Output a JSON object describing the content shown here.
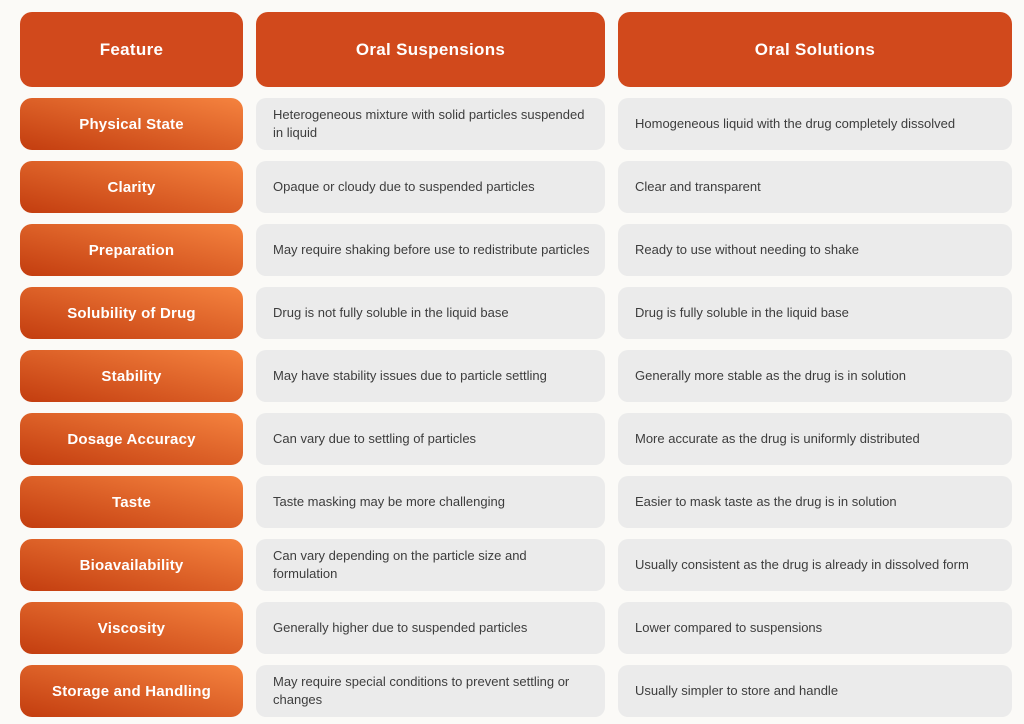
{
  "colors": {
    "background": "#fbfaf7",
    "header_bg": "#d1491c",
    "feature_gradient_start": "#c33d0f",
    "feature_gradient_end": "#f5833f",
    "cell_bg": "#ebebeb",
    "cell_text": "#3d3d3d",
    "header_text": "#ffffff"
  },
  "chart_data": {
    "type": "table",
    "title": "",
    "columns": [
      "Feature",
      "Oral Suspensions",
      "Oral Solutions"
    ],
    "rows": [
      [
        "Physical State",
        "Heterogeneous mixture with solid particles suspended in liquid",
        "Homogeneous liquid with the drug completely dissolved"
      ],
      [
        "Clarity",
        "Opaque or cloudy due to suspended particles",
        "Clear and transparent"
      ],
      [
        "Preparation",
        "May require shaking before use to redistribute particles",
        "Ready to use without needing to shake"
      ],
      [
        "Solubility of Drug",
        "Drug is not fully soluble in the liquid base",
        "Drug is fully soluble in the liquid base"
      ],
      [
        "Stability",
        "May have stability issues due to particle settling",
        "Generally more stable as the drug is in solution"
      ],
      [
        "Dosage Accuracy",
        "Can vary due to settling of particles",
        "More accurate as the drug is uniformly distributed"
      ],
      [
        "Taste",
        "Taste masking may be more challenging",
        "Easier to mask taste as the drug is in solution"
      ],
      [
        "Bioavailability",
        "Can vary depending on the particle size and formulation",
        "Usually consistent as the drug is already in dissolved form"
      ],
      [
        "Viscosity",
        "Generally higher due to suspended particles",
        "Lower compared to suspensions"
      ],
      [
        "Storage and Handling",
        "May require special conditions to prevent settling or changes",
        "Usually simpler to store and handle"
      ]
    ]
  }
}
